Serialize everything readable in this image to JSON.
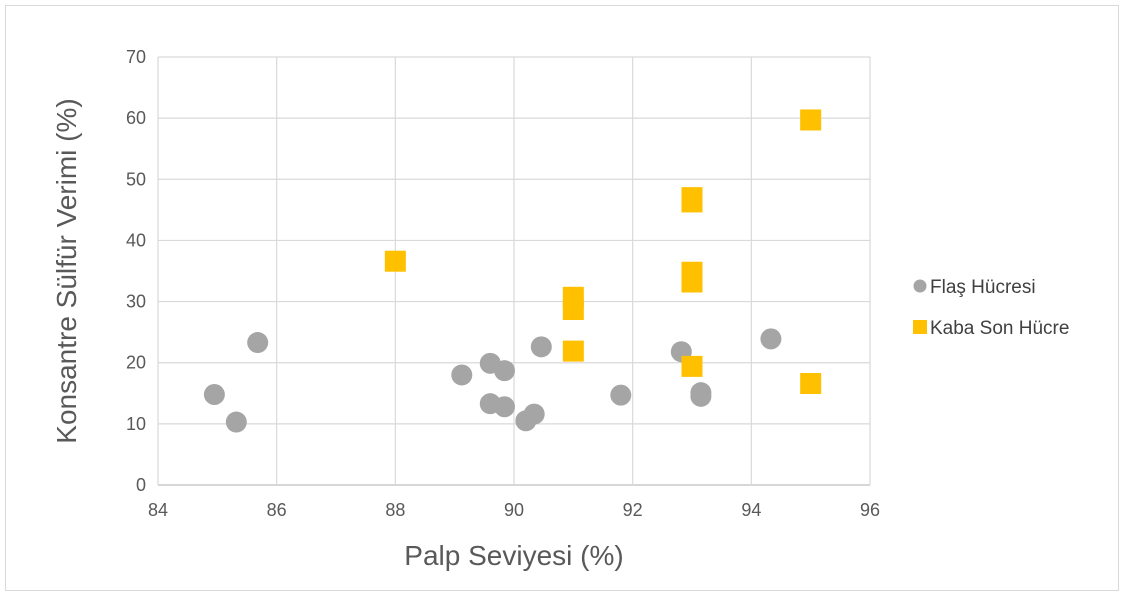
{
  "chart_data": {
    "type": "scatter",
    "xlabel": "Palp Seviyesi (%)",
    "ylabel": "Konsantre Sülfür Verimi (%)",
    "xlim": [
      84,
      96
    ],
    "ylim": [
      0,
      70
    ],
    "xticks": [
      "84",
      "86",
      "88",
      "90",
      "92",
      "94",
      "96"
    ],
    "yticks": [
      "0",
      "10",
      "20",
      "30",
      "40",
      "50",
      "60",
      "70"
    ],
    "grid": true,
    "legend_position": "right",
    "series": [
      {
        "name": "Flaş Hücresi",
        "marker": "circle",
        "color": "#a5a5a5",
        "points": [
          [
            84.95,
            14.8
          ],
          [
            85.32,
            10.3
          ],
          [
            85.68,
            23.3
          ],
          [
            89.12,
            18.0
          ],
          [
            89.6,
            19.9
          ],
          [
            89.6,
            13.3
          ],
          [
            89.84,
            18.7
          ],
          [
            89.84,
            12.8
          ],
          [
            90.2,
            10.5
          ],
          [
            90.34,
            11.6
          ],
          [
            90.46,
            22.6
          ],
          [
            91.8,
            14.7
          ],
          [
            92.82,
            21.8
          ],
          [
            93.15,
            15.1
          ],
          [
            93.15,
            14.5
          ],
          [
            94.33,
            23.9
          ]
        ]
      },
      {
        "name": "Kaba Son Hücre",
        "marker": "square",
        "color": "#ffc000",
        "points": [
          [
            88.0,
            36.6
          ],
          [
            91.0,
            30.7
          ],
          [
            91.0,
            28.7
          ],
          [
            91.0,
            21.9
          ],
          [
            93.0,
            47.0
          ],
          [
            93.0,
            46.3
          ],
          [
            93.0,
            34.8
          ],
          [
            93.0,
            33.2
          ],
          [
            93.0,
            19.4
          ],
          [
            95.0,
            59.7
          ],
          [
            95.0,
            16.6
          ]
        ]
      }
    ]
  }
}
